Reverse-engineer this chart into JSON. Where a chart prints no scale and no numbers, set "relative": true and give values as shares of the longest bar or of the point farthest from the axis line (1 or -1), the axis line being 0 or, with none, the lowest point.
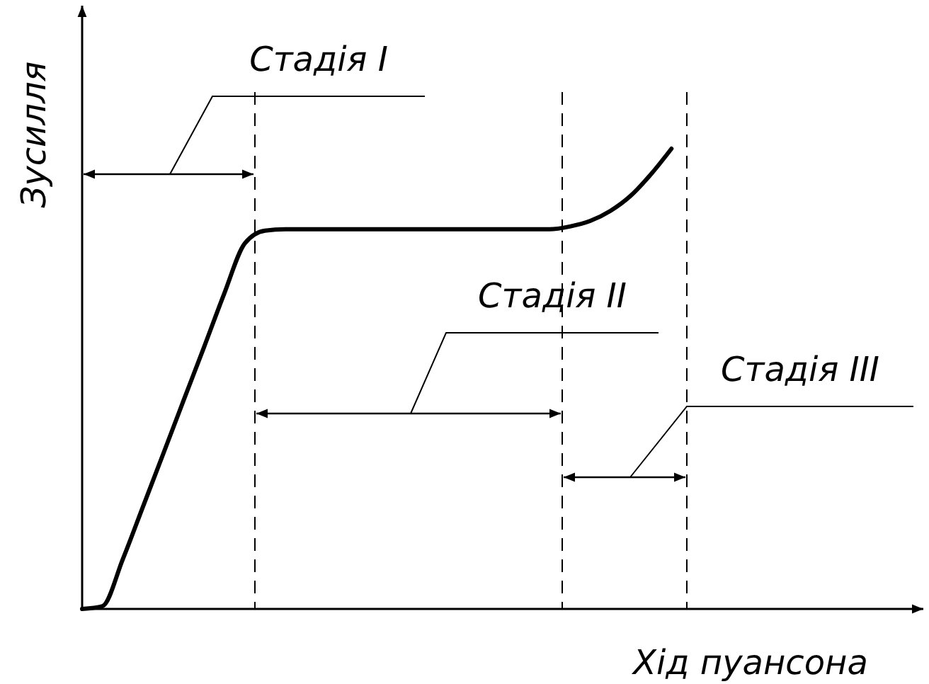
{
  "chart_data": {
    "type": "line",
    "relative": true,
    "xlabel": "Хід пуансона",
    "ylabel": "Зусилля",
    "marker": "none",
    "line_style": "solid",
    "tick_labels": false,
    "annotations": [
      "Стадія I",
      "Стадія II",
      "Стадія III"
    ],
    "categories": [
      null,
      null,
      null,
      null,
      null,
      null,
      null,
      null,
      null,
      null,
      null,
      null,
      null,
      null,
      null,
      null,
      null,
      null,
      null,
      null,
      null,
      null,
      null,
      null,
      null,
      null,
      null,
      null,
      null,
      null,
      null,
      null,
      null,
      null,
      null,
      null,
      null,
      null,
      null,
      null,
      null
    ],
    "series": [
      {
        "color": "#000000",
        "values": [
          0,
          0.006,
          0.108,
          0.223,
          0.338,
          0.454,
          0.569,
          0.686,
          0.794,
          0.822,
          0.825,
          0.825,
          0.825,
          0.825,
          0.825,
          0.825,
          0.825,
          0.825,
          0.825,
          0.825,
          0.825,
          0.825,
          0.825,
          0.825,
          0.831,
          0.843,
          0.865,
          0.898,
          0.945,
          1,
          null,
          null,
          null,
          null,
          null,
          null,
          null,
          null,
          null,
          null,
          null
        ]
      }
    ]
  }
}
